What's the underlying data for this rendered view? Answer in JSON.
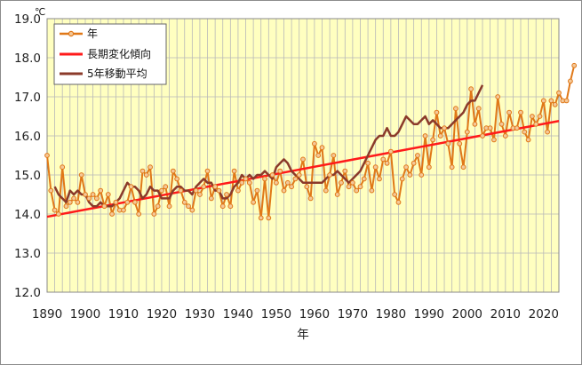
{
  "chart_data": {
    "type": "line",
    "unit": "℃",
    "xlabel": "年",
    "ylabel": "",
    "xlim": [
      1890,
      2024
    ],
    "ylim": [
      12.0,
      19.0
    ],
    "grid": true,
    "legend_position": "top-left",
    "colors": {
      "plot_background": "#ffffc0",
      "grid": "#b8b8b8",
      "annual": "#e07818",
      "annual_marker_fill": "#f4c898",
      "trend": "#ff1a1a",
      "moving_avg": "#8b3a2a"
    },
    "x_ticks": [
      "1890",
      "1900",
      "1910",
      "1920",
      "1930",
      "1940",
      "1950",
      "1960",
      "1970",
      "1980",
      "1990",
      "2000",
      "2010",
      "2020"
    ],
    "y_ticks": [
      "12.0",
      "13.0",
      "14.0",
      "15.0",
      "16.0",
      "17.0",
      "18.0",
      "19.0"
    ],
    "series": [
      {
        "name": "年",
        "x_start": 1890,
        "values": [
          15.5,
          14.6,
          14.1,
          14.0,
          15.2,
          14.2,
          14.3,
          14.4,
          14.3,
          15.0,
          14.5,
          14.4,
          14.5,
          14.4,
          14.6,
          14.2,
          14.5,
          14.0,
          14.3,
          14.1,
          14.1,
          14.3,
          14.7,
          14.3,
          14.0,
          15.1,
          15.0,
          15.2,
          14.0,
          14.2,
          14.6,
          14.7,
          14.2,
          15.1,
          14.9,
          14.6,
          14.3,
          14.2,
          14.1,
          14.6,
          14.5,
          14.7,
          15.1,
          14.4,
          14.7,
          14.6,
          14.2,
          14.5,
          14.2,
          15.1,
          14.6,
          14.8,
          14.9,
          14.8,
          14.3,
          14.6,
          13.9,
          14.9,
          13.9,
          15.0,
          14.8,
          15.1,
          14.6,
          14.8,
          14.7,
          14.9,
          15.0,
          15.4,
          14.7,
          14.4,
          15.8,
          15.5,
          15.7,
          14.6,
          15.0,
          15.5,
          14.5,
          14.8,
          15.1,
          14.7,
          14.8,
          14.6,
          14.7,
          14.9,
          15.3,
          14.6,
          15.2,
          14.9,
          15.4,
          15.3,
          15.6,
          14.5,
          14.3,
          14.9,
          15.2,
          15.0,
          15.3,
          15.5,
          15.0,
          16.0,
          15.2,
          15.9,
          16.6,
          16.0,
          16.2,
          15.8,
          15.2,
          16.7,
          15.8,
          15.2,
          16.1,
          17.2,
          16.3,
          16.7,
          16.0,
          16.2,
          16.2,
          15.9,
          17.0,
          16.3,
          16.0,
          16.6,
          16.2,
          16.2,
          16.6,
          16.1,
          15.9,
          16.5,
          16.3,
          16.5,
          16.9,
          16.1,
          16.9,
          16.8,
          17.1,
          16.9,
          16.9,
          17.4,
          17.8
        ]
      },
      {
        "name": "長期変化傾向",
        "x_start": 1890,
        "x_end": 2024,
        "values": [
          13.93,
          16.38
        ]
      },
      {
        "name": "5年移動平均",
        "x_start": 1892,
        "values": [
          14.7,
          14.5,
          14.4,
          14.3,
          14.6,
          14.5,
          14.6,
          14.5,
          14.5,
          14.3,
          14.2,
          14.2,
          14.3,
          14.2,
          14.2,
          14.2,
          14.3,
          14.4,
          14.6,
          14.8,
          14.7,
          14.7,
          14.6,
          14.4,
          14.5,
          14.7,
          14.6,
          14.6,
          14.4,
          14.4,
          14.4,
          14.6,
          14.7,
          14.7,
          14.6,
          14.6,
          14.5,
          14.7,
          14.8,
          14.9,
          14.8,
          14.8,
          14.6,
          14.6,
          14.4,
          14.4,
          14.5,
          14.7,
          14.8,
          15.0,
          14.9,
          15.0,
          14.9,
          15.0,
          15.0,
          15.1,
          15.0,
          14.9,
          15.2,
          15.3,
          15.4,
          15.3,
          15.1,
          15.0,
          14.9,
          14.8,
          14.8,
          14.8,
          14.8,
          14.8,
          14.8,
          14.9,
          15.0,
          15.0,
          15.1,
          15.0,
          14.9,
          14.8,
          14.9,
          15.0,
          15.1,
          15.3,
          15.5,
          15.7,
          15.9,
          16.0,
          16.0,
          16.2,
          16.0,
          16.0,
          16.1,
          16.3,
          16.5,
          16.4,
          16.3,
          16.3,
          16.4,
          16.5,
          16.3,
          16.4,
          16.3,
          16.2,
          16.2,
          16.2,
          16.3,
          16.4,
          16.5,
          16.6,
          16.8,
          16.9,
          16.9,
          17.1,
          17.3
        ]
      }
    ]
  }
}
